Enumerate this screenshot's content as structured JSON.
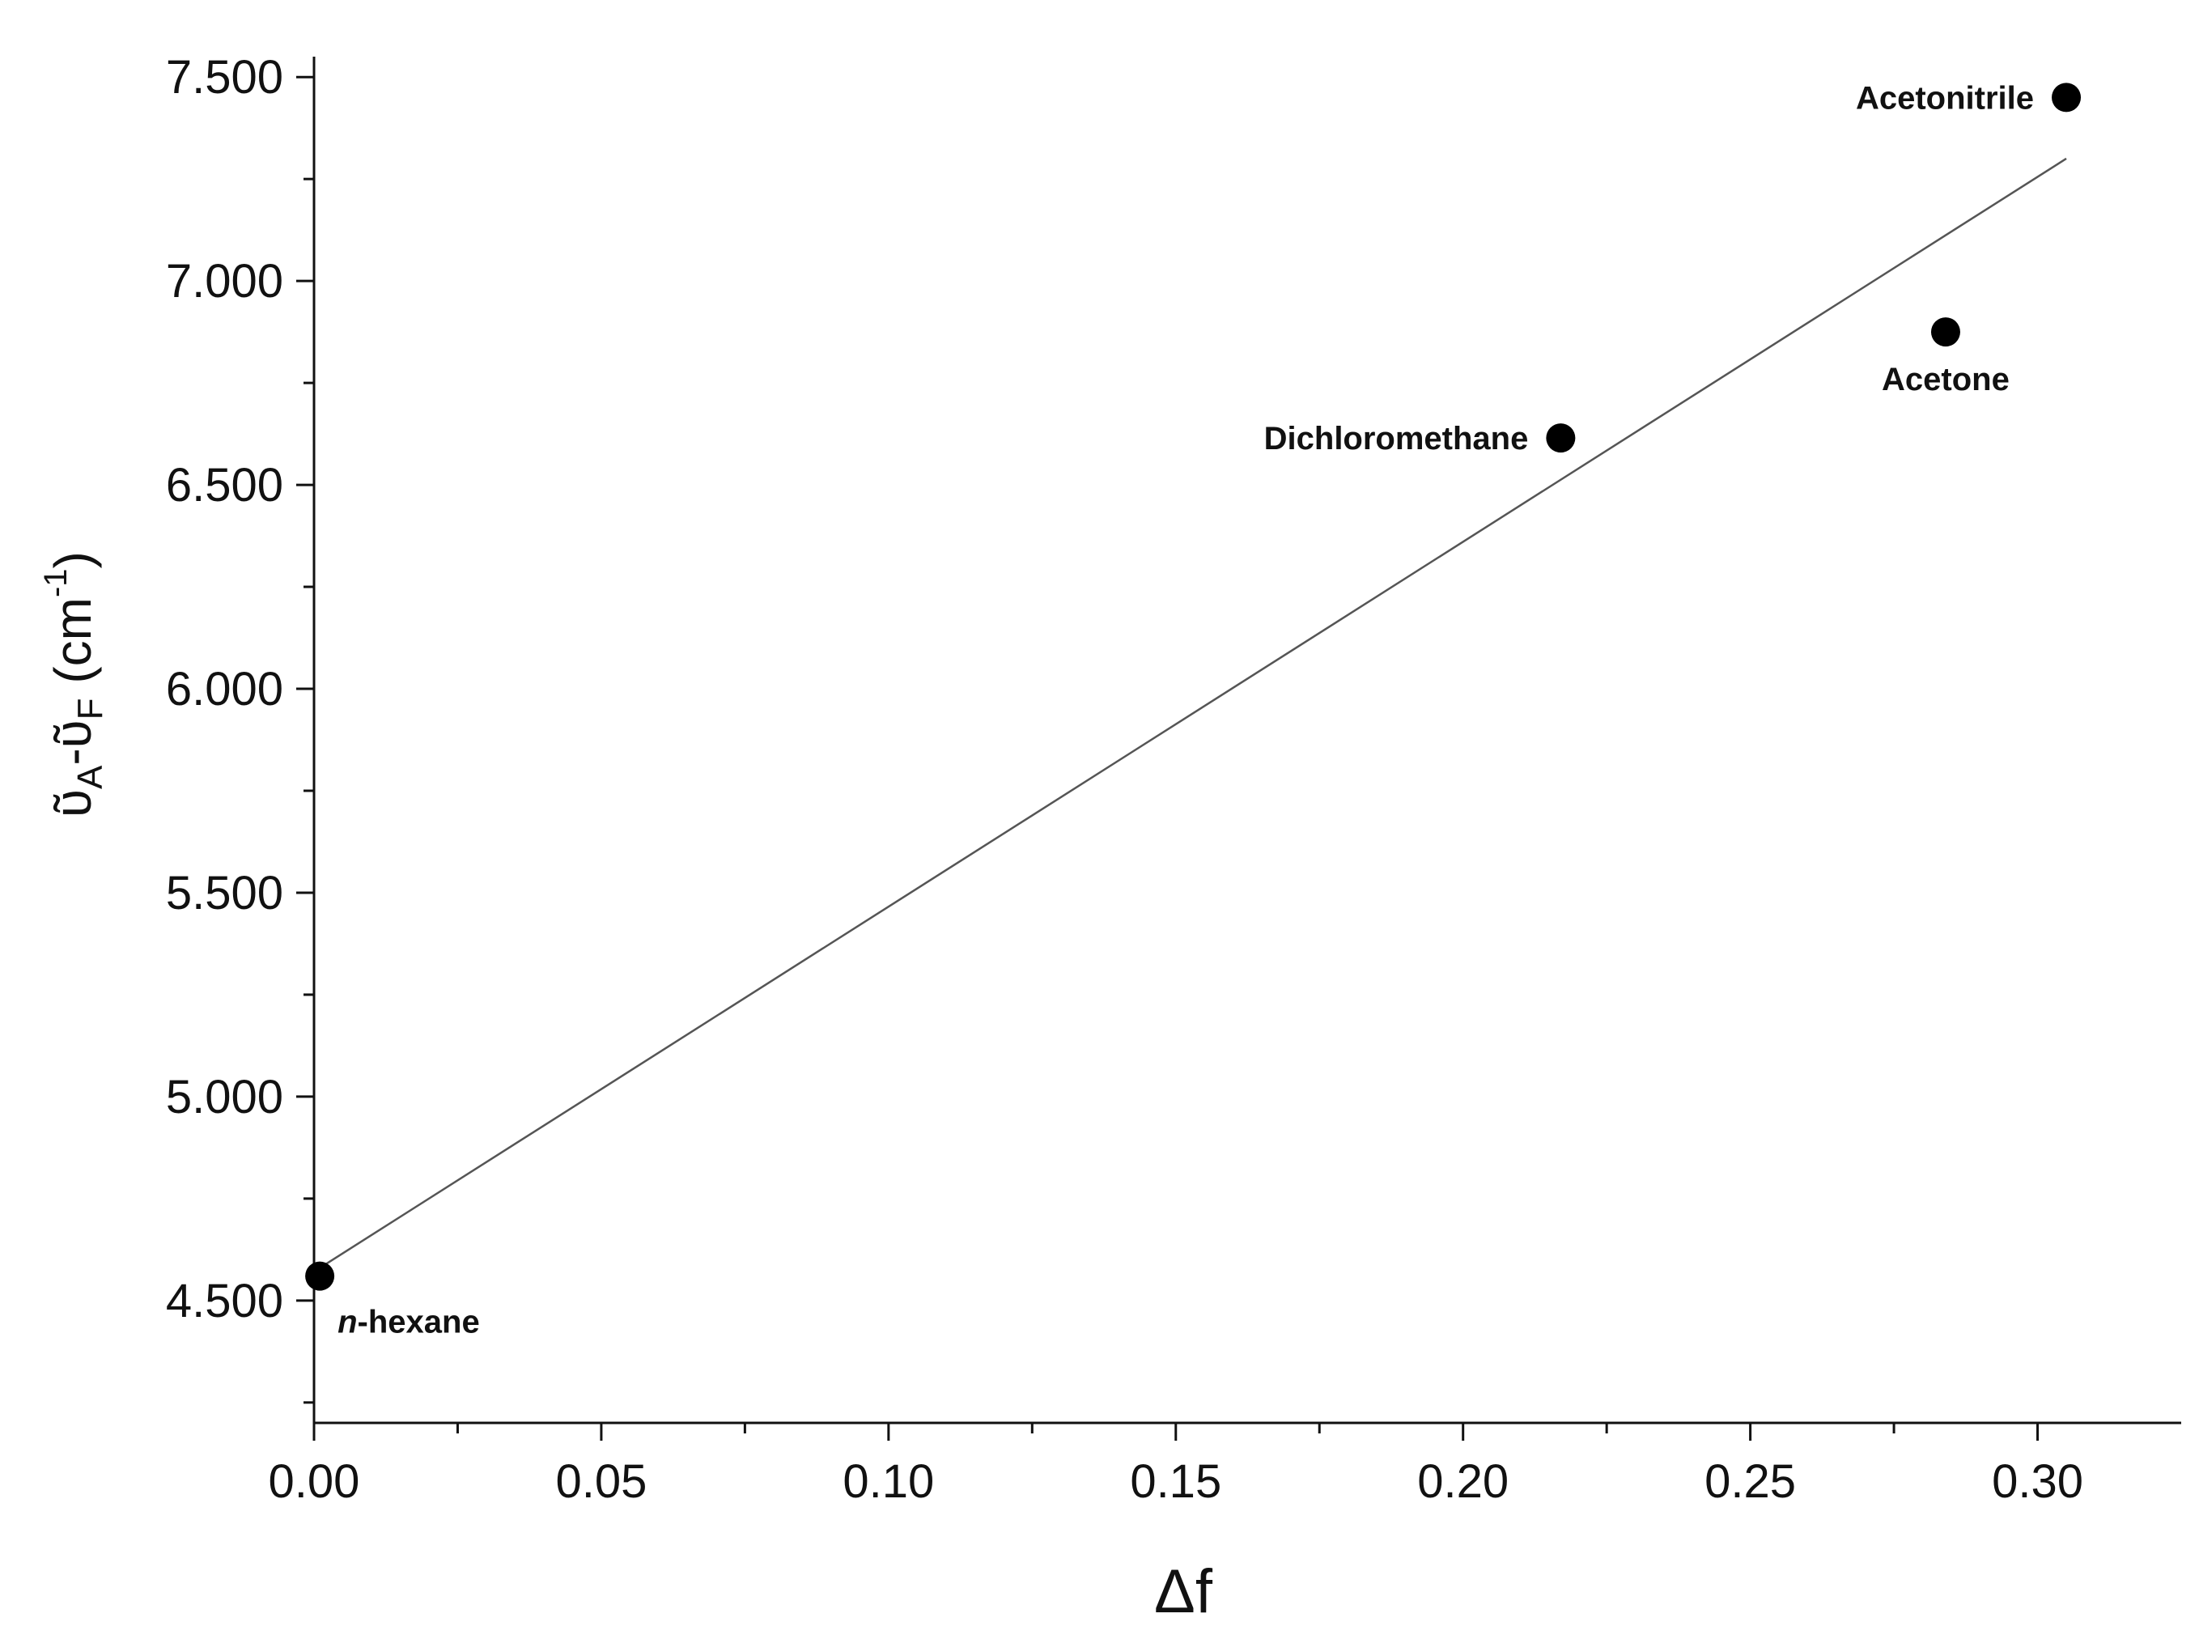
{
  "chart_data": {
    "type": "scatter",
    "title": "",
    "xlabel": "Δf",
    "ylabel": {
      "nu_symbol": "ῦ",
      "sub_a": "A",
      "dash": "-",
      "sub_f": "F",
      "unit_open": " (cm",
      "unit_sup": "-1",
      "unit_close": ")"
    },
    "xlim": [
      0.0,
      0.325
    ],
    "ylim": [
      4200,
      7550
    ],
    "x_ticks": [
      0.0,
      0.05,
      0.1,
      0.15,
      0.2,
      0.25,
      0.3
    ],
    "x_tick_labels": [
      "0.00",
      "0.05",
      "0.10",
      "0.15",
      "0.20",
      "0.25",
      "0.30"
    ],
    "y_ticks": [
      4500,
      5000,
      5500,
      6000,
      6500,
      7000,
      7500
    ],
    "y_tick_labels": [
      "4.500",
      "5.000",
      "5.500",
      "6.000",
      "6.500",
      "7.000",
      "7.500"
    ],
    "grid": false,
    "points": [
      {
        "label": "n-hexane",
        "label_prefix": "n",
        "label_rest": "-hexane",
        "x": 0.001,
        "y": 4560
      },
      {
        "label": "Dichloromethane",
        "x": 0.217,
        "y": 6615
      },
      {
        "label": "Acetone",
        "x": 0.284,
        "y": 6875
      },
      {
        "label": "Acetonitrile",
        "x": 0.305,
        "y": 7450
      }
    ],
    "fit_line": {
      "x": [
        0.001,
        0.305
      ],
      "y": [
        4580,
        7300
      ]
    },
    "colors": {
      "marker": "#000000",
      "line": "#555555",
      "axis": "#111111"
    }
  }
}
